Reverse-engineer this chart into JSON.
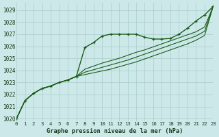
{
  "bg_color": "#cce8e8",
  "grid_color": "#aacccc",
  "line_color": "#1a5c1a",
  "xlabel": "Graphe pression niveau de la mer (hPa)",
  "xlim": [
    0,
    23
  ],
  "ylim": [
    1019.8,
    1029.6
  ],
  "yticks": [
    1020,
    1021,
    1022,
    1023,
    1024,
    1025,
    1026,
    1027,
    1028,
    1029
  ],
  "xticks": [
    0,
    1,
    2,
    3,
    4,
    5,
    6,
    7,
    8,
    9,
    10,
    11,
    12,
    13,
    14,
    15,
    16,
    17,
    18,
    19,
    20,
    21,
    22,
    23
  ],
  "series": [
    {
      "x": [
        0,
        1,
        2,
        3,
        4,
        5,
        6,
        7,
        8,
        9,
        10,
        11,
        12,
        13,
        14,
        15,
        16,
        17,
        18,
        19,
        20,
        21,
        22,
        23
      ],
      "y": [
        1020.0,
        1021.5,
        1022.1,
        1022.5,
        1022.7,
        1023.0,
        1023.2,
        1023.5,
        1025.9,
        1026.3,
        1026.85,
        1027.0,
        1027.0,
        1027.0,
        1027.0,
        1026.75,
        1026.6,
        1026.6,
        1026.65,
        1027.0,
        1027.5,
        1028.1,
        1028.6,
        1029.3
      ],
      "marker": true,
      "lw": 1.0
    },
    {
      "x": [
        0,
        1,
        2,
        3,
        4,
        5,
        6,
        7,
        8,
        9,
        10,
        11,
        12,
        13,
        14,
        15,
        16,
        17,
        18,
        19,
        20,
        21,
        22,
        23
      ],
      "y": [
        1020.0,
        1021.5,
        1022.1,
        1022.5,
        1022.7,
        1023.0,
        1023.2,
        1023.5,
        1024.1,
        1024.35,
        1024.6,
        1024.8,
        1025.0,
        1025.25,
        1025.5,
        1025.7,
        1025.95,
        1026.2,
        1026.45,
        1026.7,
        1026.95,
        1027.2,
        1027.6,
        1029.3
      ],
      "marker": false,
      "lw": 0.8
    },
    {
      "x": [
        0,
        1,
        2,
        3,
        4,
        5,
        6,
        7,
        8,
        9,
        10,
        11,
        12,
        13,
        14,
        15,
        16,
        17,
        18,
        19,
        20,
        21,
        22,
        23
      ],
      "y": [
        1020.0,
        1021.5,
        1022.1,
        1022.5,
        1022.7,
        1023.0,
        1023.2,
        1023.5,
        1023.85,
        1024.05,
        1024.25,
        1024.45,
        1024.65,
        1024.85,
        1025.1,
        1025.35,
        1025.6,
        1025.85,
        1026.1,
        1026.35,
        1026.6,
        1026.85,
        1027.25,
        1029.3
      ],
      "marker": false,
      "lw": 0.8
    },
    {
      "x": [
        0,
        1,
        2,
        3,
        4,
        5,
        6,
        7,
        8,
        9,
        10,
        11,
        12,
        13,
        14,
        15,
        16,
        17,
        18,
        19,
        20,
        21,
        22,
        23
      ],
      "y": [
        1020.0,
        1021.5,
        1022.1,
        1022.5,
        1022.7,
        1023.0,
        1023.2,
        1023.5,
        1023.65,
        1023.8,
        1023.95,
        1024.1,
        1024.3,
        1024.5,
        1024.7,
        1024.95,
        1025.2,
        1025.45,
        1025.7,
        1025.95,
        1026.2,
        1026.5,
        1026.9,
        1029.3
      ],
      "marker": false,
      "lw": 0.8
    }
  ]
}
